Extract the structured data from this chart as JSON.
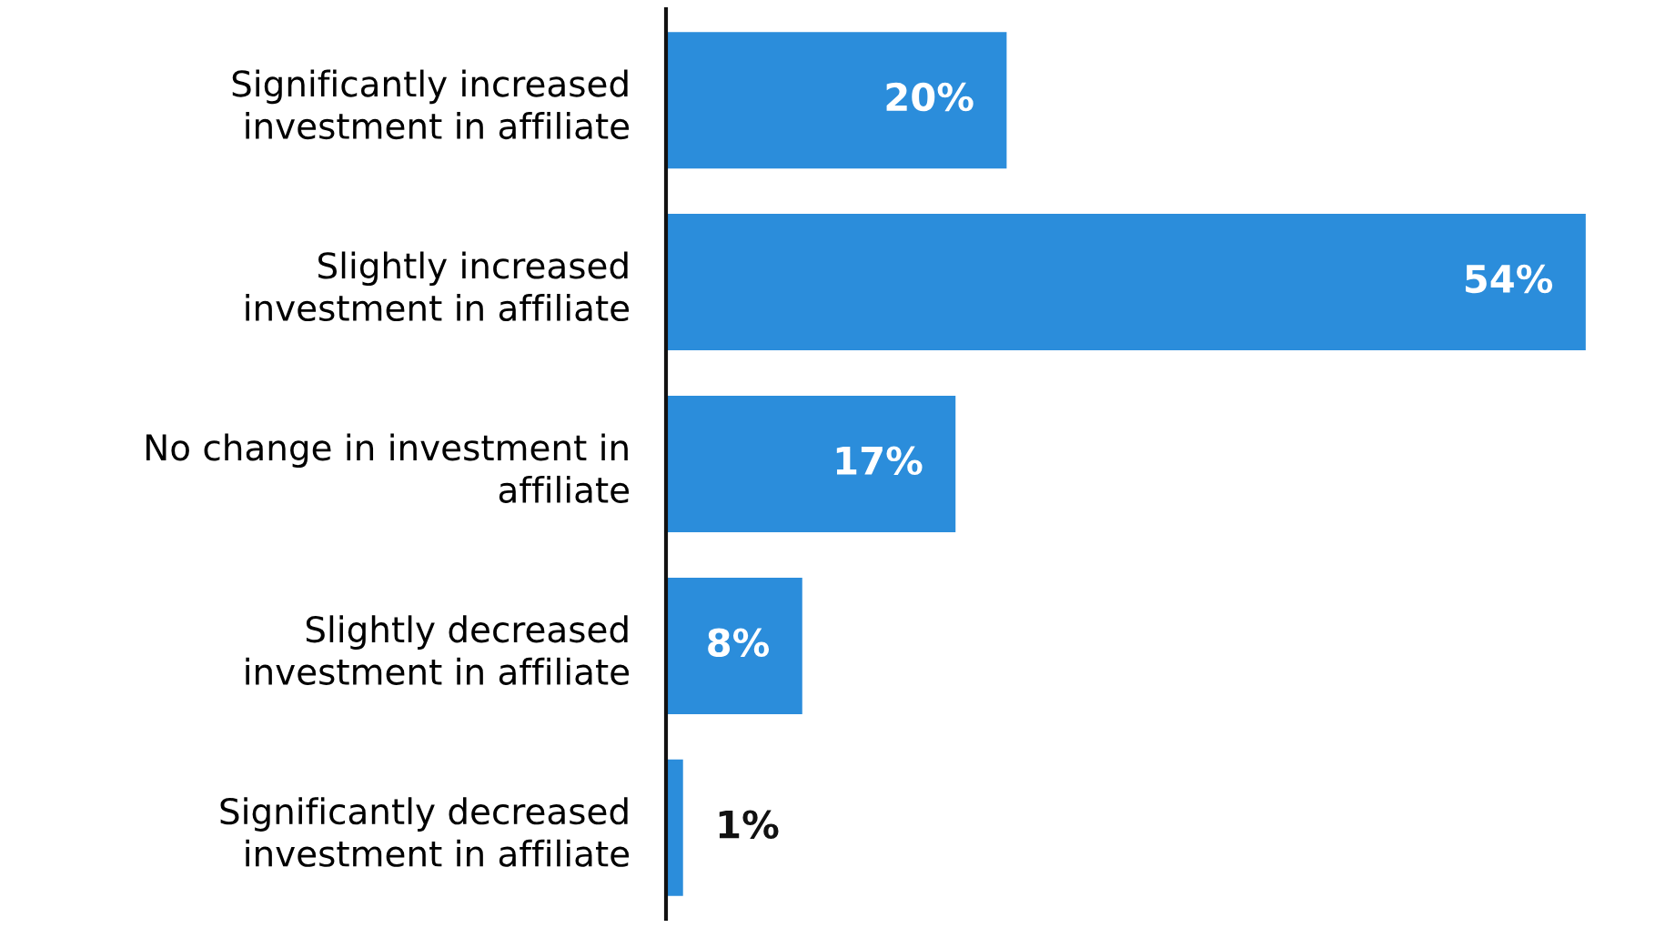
{
  "chart_data": {
    "type": "bar",
    "orientation": "horizontal",
    "categories": [
      "Significantly increased investment in affiliate",
      "Slightly increased investment in affiliate",
      "No change in investment in affiliate",
      "Slightly decreased investment in affiliate",
      "Significantly decreased investment in affiliate"
    ],
    "values": [
      20,
      54,
      17,
      8,
      1
    ],
    "value_labels": [
      "20%",
      "54%",
      "17%",
      "8%",
      "1%"
    ],
    "color": "#2b8ddb",
    "grid": false,
    "legend": false,
    "tick_labels": "y"
  }
}
